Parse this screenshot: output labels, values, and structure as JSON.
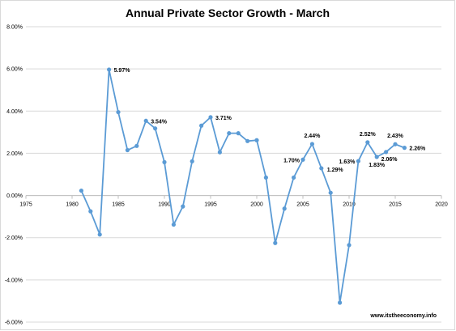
{
  "chart_data": {
    "type": "scatter",
    "title": "Annual Private Sector Growth - March",
    "xlabel": "",
    "ylabel": "",
    "xlim": [
      1975,
      2020
    ],
    "ylim": [
      -0.06,
      0.08
    ],
    "x_ticks": [
      "1975",
      "1980",
      "1985",
      "1990",
      "1995",
      "2000",
      "2005",
      "2010",
      "2015",
      "2020"
    ],
    "y_ticks": [
      "8.00%",
      "6.00%",
      "4.00%",
      "2.00%",
      "0.00%",
      "-2.00%",
      "-4.00%",
      "-6.00%"
    ],
    "grid": "horizontal",
    "series_color": "#5B9BD5",
    "x": [
      1981,
      1982,
      1983,
      1984,
      1985,
      1986,
      1987,
      1988,
      1989,
      1990,
      1991,
      1992,
      1993,
      1994,
      1995,
      1996,
      1997,
      1998,
      1999,
      2000,
      2001,
      2002,
      2003,
      2004,
      2005,
      2006,
      2007,
      2008,
      2009,
      2010,
      2011,
      2012,
      2013,
      2014,
      2015,
      2016
    ],
    "y": [
      0.0023,
      -0.0075,
      -0.0185,
      0.0597,
      0.0395,
      0.0215,
      0.0235,
      0.0354,
      0.0318,
      0.0158,
      -0.0138,
      -0.0052,
      0.0162,
      0.0331,
      0.0371,
      0.0205,
      0.0295,
      0.0295,
      0.0258,
      0.0262,
      0.0085,
      -0.0225,
      -0.0062,
      0.0085,
      0.017,
      0.0244,
      0.0129,
      0.0013,
      -0.0508,
      -0.0235,
      0.0163,
      0.0252,
      0.0183,
      0.0206,
      0.0243,
      0.0226
    ],
    "data_labels": [
      {
        "x": 1984,
        "text": "5.97%"
      },
      {
        "x": 1988,
        "text": "3.54%"
      },
      {
        "x": 1995,
        "text": "3.71%"
      },
      {
        "x": 2005,
        "text": "1.70%"
      },
      {
        "x": 2006,
        "text": "2.44%"
      },
      {
        "x": 2007,
        "text": "1.29%"
      },
      {
        "x": 2011,
        "text": "1.63%"
      },
      {
        "x": 2012,
        "text": "2.52%"
      },
      {
        "x": 2013,
        "text": "1.83%"
      },
      {
        "x": 2014,
        "text": "2.06%"
      },
      {
        "x": 2015,
        "text": "2.43%"
      },
      {
        "x": 2016,
        "text": "2.26%"
      }
    ],
    "watermark": "www.itstheeconomy.info"
  }
}
